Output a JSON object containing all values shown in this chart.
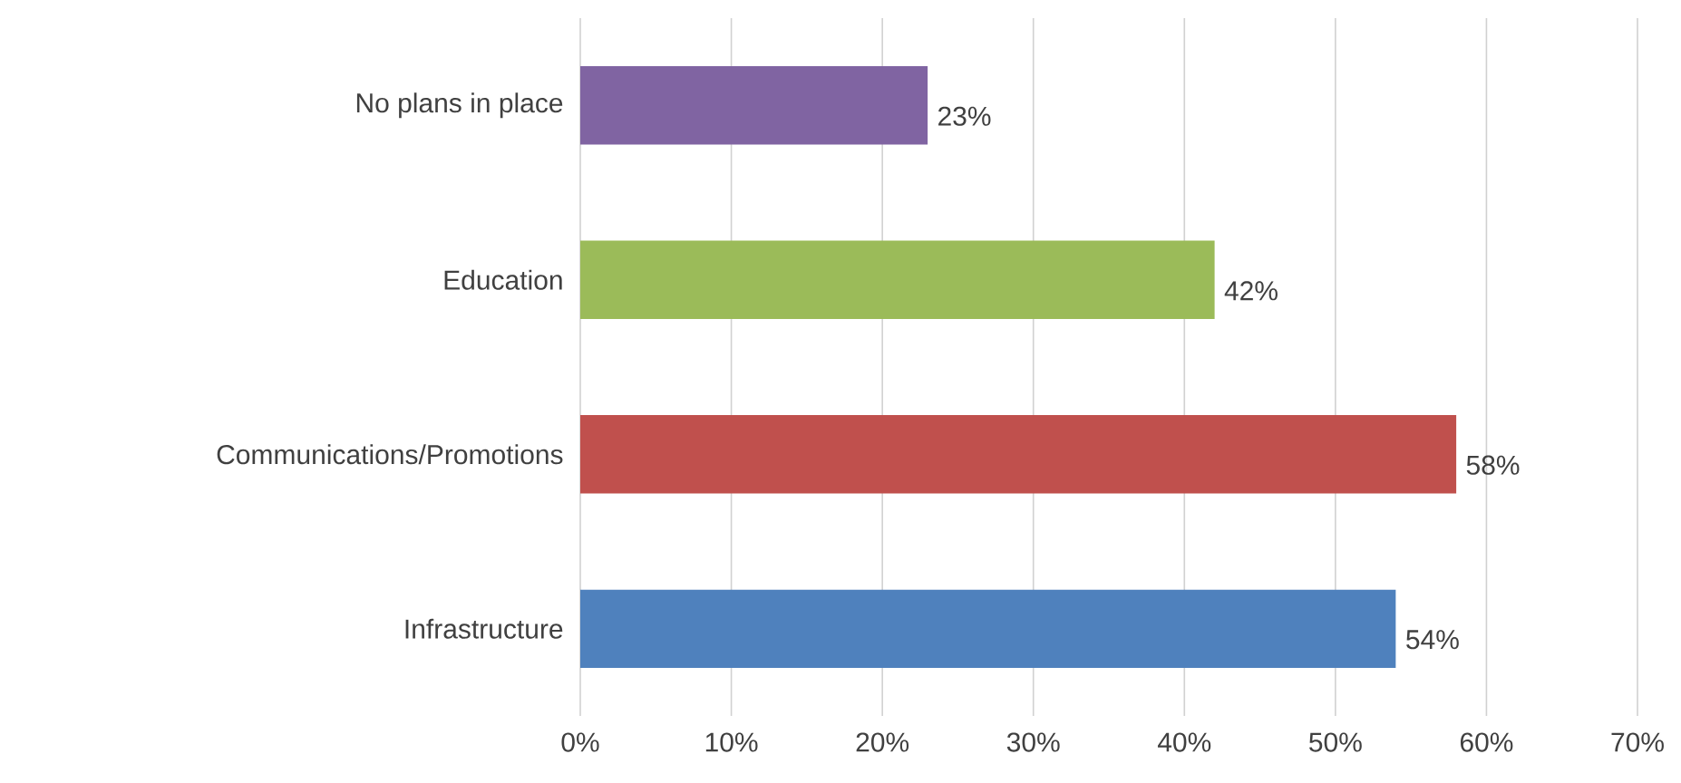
{
  "chart_data": {
    "type": "bar",
    "orientation": "horizontal",
    "categories": [
      "No plans in place",
      "Education",
      "Communications/Promotions",
      "Infrastructure"
    ],
    "values": [
      23,
      42,
      58,
      54
    ],
    "value_labels": [
      "23%",
      "42%",
      "58%",
      "54%"
    ],
    "colors": [
      "#8064a2",
      "#9bbb59",
      "#c0504d",
      "#4f81bd"
    ],
    "xlim": [
      0,
      70
    ],
    "xticks": [
      {
        "value": 0,
        "label": "0%"
      },
      {
        "value": 10,
        "label": "10%"
      },
      {
        "value": 20,
        "label": "20%"
      },
      {
        "value": 30,
        "label": "30%"
      },
      {
        "value": 40,
        "label": "40%"
      },
      {
        "value": 50,
        "label": "50%"
      },
      {
        "value": 60,
        "label": "60%"
      },
      {
        "value": 70,
        "label": "70%"
      }
    ],
    "grid": "x"
  }
}
